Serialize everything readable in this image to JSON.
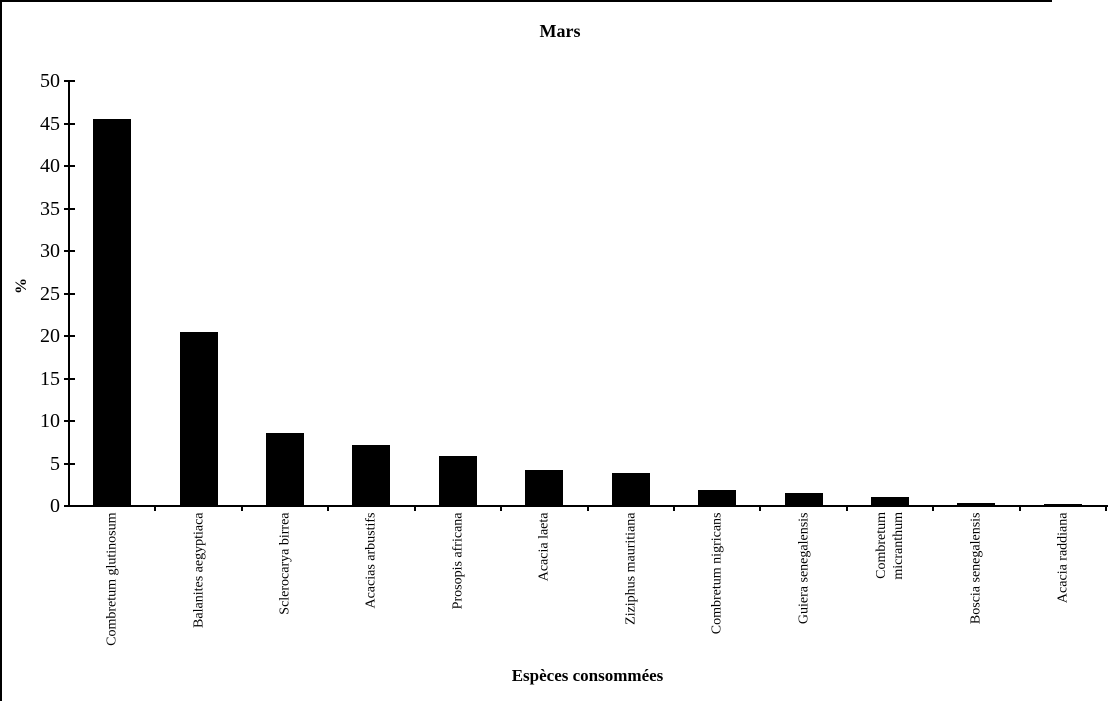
{
  "chart_data": {
    "type": "bar",
    "title": "Mars",
    "xlabel": "Espèces consommées",
    "ylabel": "%",
    "ylim": [
      0,
      50
    ],
    "ytick_step": 5,
    "grid": false,
    "legend": "none",
    "bar_color": "#000000",
    "background_color": "#ffffff",
    "categories": [
      "Combretum glutinosum",
      "Balanites aegyptiaca",
      "Sclerocarya birrea",
      "Acacias arbustifs",
      "Prosopis africana",
      "Acacia laeta",
      "Ziziphus mauritiana",
      "Combretum nigricans",
      "Guiera senegalensis",
      "Combretum\nmicranthum",
      "Boscia senegalensis",
      "Acacia raddiana"
    ],
    "values": [
      45.5,
      20.5,
      8.6,
      7.2,
      5.9,
      4.2,
      3.9,
      1.9,
      1.5,
      1.1,
      0.3,
      0.2
    ]
  }
}
